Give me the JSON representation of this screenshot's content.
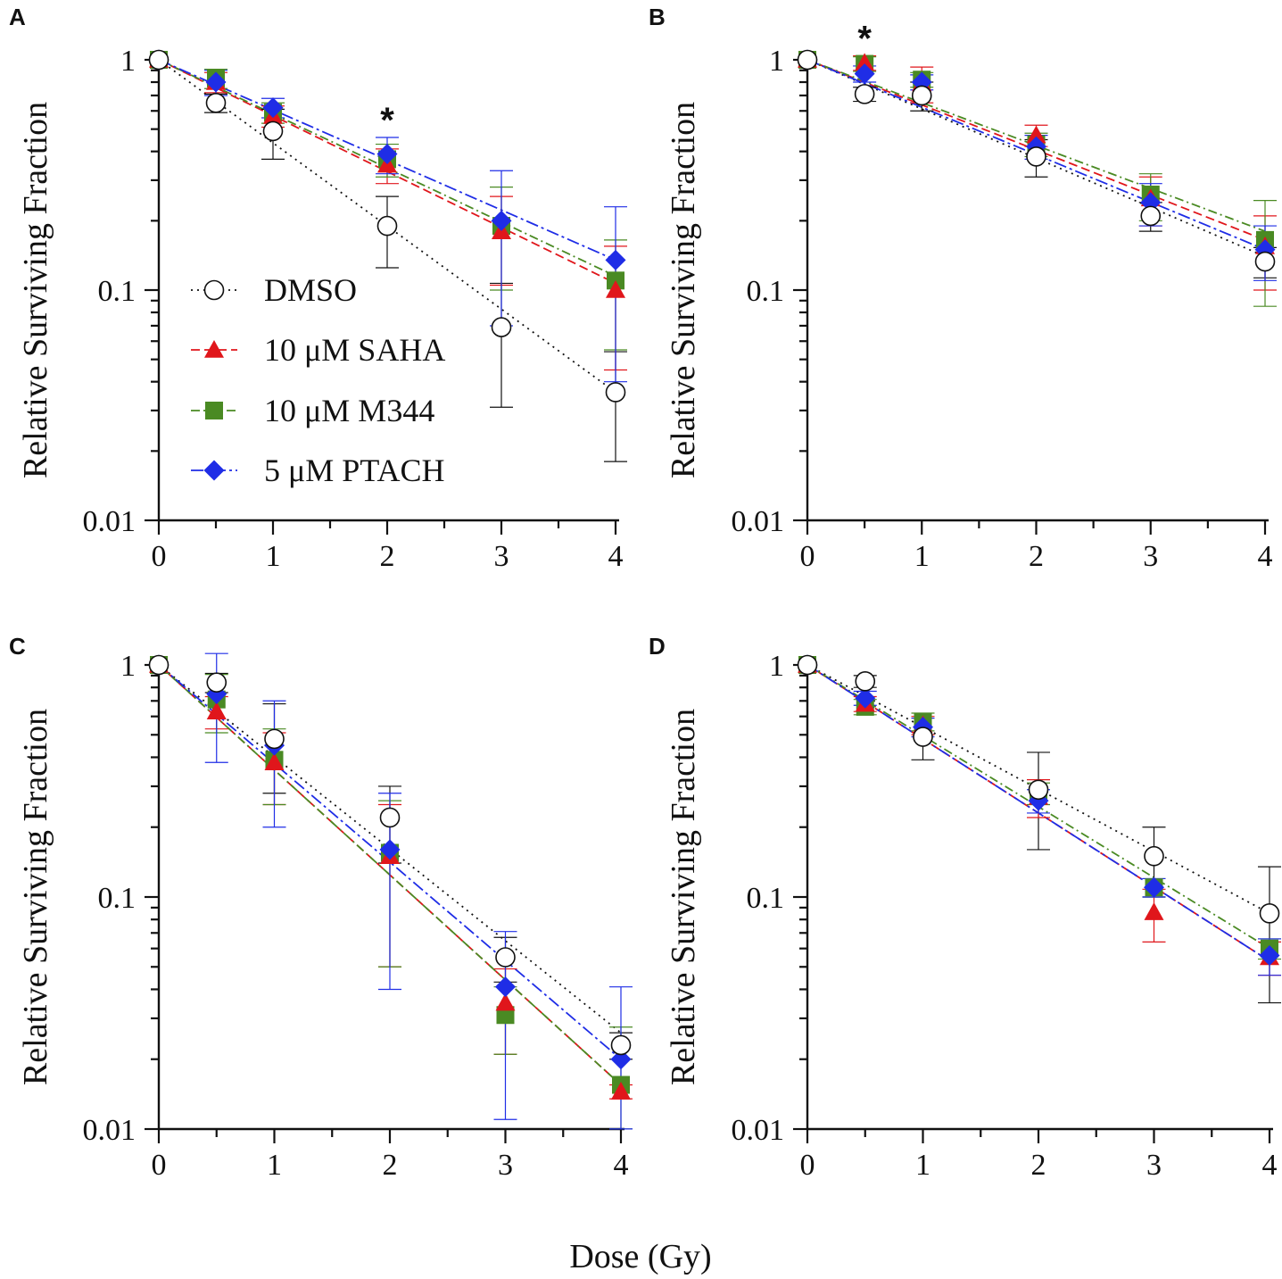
{
  "figure": {
    "xlabel": "Dose (Gy)"
  },
  "legend": [
    {
      "label": "DMSO",
      "series": 0
    },
    {
      "label": "10 μM SAHA",
      "series": 1
    },
    {
      "label": "10 μM M344",
      "series": 2
    },
    {
      "label": "5 μM PTACH",
      "series": 3
    }
  ],
  "colors": {
    "DMSO": "#111111",
    "SAHA": "#e0161b",
    "M344": "#4a8a23",
    "PTACH": "#1f2de6"
  },
  "chart_data": [
    {
      "panel": "A",
      "type": "scatter",
      "ylabel": "Relative Surviving Fraction",
      "xlabel": "Dose (Gy)",
      "xlim": [
        0,
        4
      ],
      "ylim": [
        0.01,
        1
      ],
      "yscale": "log",
      "xticks": [
        "0",
        "1",
        "2",
        "3",
        "4"
      ],
      "yticks": [
        "1",
        "0.1",
        "0.01"
      ],
      "annotations": [
        {
          "text": "*",
          "x": 2
        }
      ],
      "x": [
        0,
        0.5,
        1,
        2,
        3,
        4
      ],
      "series": [
        {
          "name": "DMSO",
          "values": [
            1,
            0.65,
            0.49,
            0.19,
            0.069,
            0.036
          ],
          "err": [
            0,
            0.06,
            0.12,
            0.065,
            0.038,
            0.018
          ],
          "fit": [
            1,
            0.036
          ]
        },
        {
          "name": "10 μM SAHA",
          "values": [
            1,
            0.8,
            0.57,
            0.35,
            0.18,
            0.1
          ],
          "err": [
            0,
            0.08,
            0.06,
            0.06,
            0.075,
            0.055
          ],
          "fit": [
            1,
            0.107
          ]
        },
        {
          "name": "10 μM M344",
          "values": [
            1,
            0.83,
            0.59,
            0.37,
            0.19,
            0.11
          ],
          "err": [
            0,
            0.08,
            0.06,
            0.06,
            0.09,
            0.055
          ],
          "fit": [
            1,
            0.115
          ]
        },
        {
          "name": "5 μM PTACH",
          "values": [
            1,
            0.8,
            0.62,
            0.39,
            0.2,
            0.135
          ],
          "err": [
            0,
            0.1,
            0.06,
            0.07,
            0.13,
            0.095
          ],
          "fit": [
            1,
            0.135
          ]
        }
      ]
    },
    {
      "panel": "B",
      "type": "scatter",
      "ylabel": "Relative Surviving Fraction",
      "xlabel": "Dose (Gy)",
      "xlim": [
        0,
        4
      ],
      "ylim": [
        0.01,
        1
      ],
      "yscale": "log",
      "xticks": [
        "0",
        "1",
        "2",
        "3",
        "4"
      ],
      "yticks": [
        "1",
        "0.1",
        "0.01"
      ],
      "annotations": [
        {
          "text": "*",
          "x": 0.5
        }
      ],
      "x": [
        0,
        0.5,
        1,
        2,
        3,
        4
      ],
      "series": [
        {
          "name": "DMSO",
          "values": [
            1,
            0.71,
            0.7,
            0.38,
            0.21,
            0.133
          ],
          "err": [
            0,
            0.05,
            0.1,
            0.07,
            0.03,
            0.02
          ],
          "fit": [
            1,
            0.14
          ]
        },
        {
          "name": "10 μM SAHA",
          "values": [
            1,
            0.97,
            0.79,
            0.47,
            0.25,
            0.155
          ],
          "err": [
            0,
            0.07,
            0.14,
            0.05,
            0.06,
            0.055
          ],
          "fit": [
            1,
            0.165
          ]
        },
        {
          "name": "10 μM M344",
          "values": [
            1,
            0.96,
            0.82,
            0.43,
            0.26,
            0.165
          ],
          "err": [
            0,
            0.07,
            0.06,
            0.05,
            0.06,
            0.08
          ],
          "fit": [
            1,
            0.18
          ]
        },
        {
          "name": "5 μM PTACH",
          "values": [
            1,
            0.87,
            0.8,
            0.42,
            0.24,
            0.15
          ],
          "err": [
            0,
            0.07,
            0.06,
            0.05,
            0.05,
            0.04
          ],
          "fit": [
            1,
            0.15
          ]
        }
      ]
    },
    {
      "panel": "C",
      "type": "scatter",
      "ylabel": "Relative Surviving Fraction",
      "xlabel": "Dose (Gy)",
      "xlim": [
        0,
        4
      ],
      "ylim": [
        0.01,
        1
      ],
      "yscale": "log",
      "xticks": [
        "0",
        "1",
        "2",
        "3",
        "4"
      ],
      "yticks": [
        "1",
        "0.1",
        "0.01"
      ],
      "annotations": [],
      "x": [
        0,
        0.5,
        1,
        2,
        3,
        4
      ],
      "series": [
        {
          "name": "DMSO",
          "values": [
            1,
            0.84,
            0.48,
            0.22,
            0.055,
            0.023
          ],
          "err": [
            0,
            0.08,
            0.2,
            0.08,
            0.012,
            0.003
          ],
          "fit": [
            1,
            0.026
          ]
        },
        {
          "name": "10 μM SAHA",
          "values": [
            1,
            0.63,
            0.38,
            0.15,
            0.035,
            0.0145
          ],
          "err": [
            0,
            0.1,
            0.13,
            0.1,
            0.014,
            0.001
          ],
          "fit": [
            1,
            0.0155
          ]
        },
        {
          "name": "10 μM M344",
          "values": [
            1,
            0.71,
            0.39,
            0.155,
            0.031,
            0.0155
          ],
          "err": [
            0,
            0.2,
            0.14,
            0.105,
            0.01,
            0.012
          ],
          "fit": [
            1,
            0.0155
          ]
        },
        {
          "name": "5 μM PTACH",
          "values": [
            1,
            0.75,
            0.45,
            0.16,
            0.041,
            0.02
          ],
          "err": [
            0,
            0.37,
            0.25,
            0.12,
            0.03,
            0.021
          ],
          "fit": [
            1,
            0.02
          ]
        }
      ]
    },
    {
      "panel": "D",
      "type": "scatter",
      "ylabel": "Relative Surviving Fraction",
      "xlabel": "Dose (Gy)",
      "xlim": [
        0,
        4
      ],
      "ylim": [
        0.01,
        1
      ],
      "yscale": "log",
      "xticks": [
        "0",
        "1",
        "2",
        "3",
        "4"
      ],
      "yticks": [
        "1",
        "0.1",
        "0.01"
      ],
      "annotations": [],
      "x": [
        0,
        0.5,
        1,
        2,
        3,
        4
      ],
      "series": [
        {
          "name": "DMSO",
          "values": [
            1,
            0.85,
            0.49,
            0.29,
            0.15,
            0.085
          ],
          "err": [
            0,
            0.05,
            0.1,
            0.13,
            0.05,
            0.05
          ],
          "fit": [
            1,
            0.085
          ]
        },
        {
          "name": "10 μM SAHA",
          "values": [
            1,
            0.68,
            0.55,
            0.27,
            0.086,
            0.055
          ],
          "err": [
            0,
            0.05,
            0.05,
            0.05,
            0.022,
            0.009
          ],
          "fit": [
            1,
            0.053
          ]
        },
        {
          "name": "10 μM M344",
          "values": [
            1,
            0.66,
            0.57,
            0.28,
            0.11,
            0.06
          ],
          "err": [
            0,
            0.05,
            0.05,
            0.03,
            0.01,
            0.006
          ],
          "fit": [
            1,
            0.06
          ]
        },
        {
          "name": "5 μM PTACH",
          "values": [
            1,
            0.72,
            0.54,
            0.26,
            0.11,
            0.056
          ],
          "err": [
            0,
            0.05,
            0.05,
            0.03,
            0.01,
            0.01
          ],
          "fit": [
            1,
            0.053
          ]
        }
      ]
    }
  ]
}
